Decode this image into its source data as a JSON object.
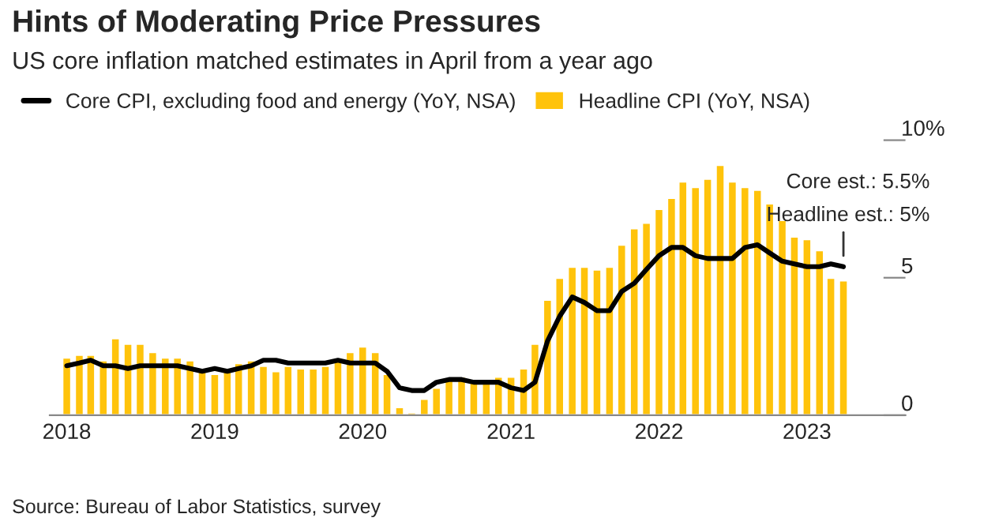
{
  "chart_data": {
    "type": "bar",
    "title": "Hints of Moderating Price Pressures",
    "subtitle": "US core inflation matched estimates in April from a year ago",
    "x": [
      "2018-01",
      "2018-02",
      "2018-03",
      "2018-04",
      "2018-05",
      "2018-06",
      "2018-07",
      "2018-08",
      "2018-09",
      "2018-10",
      "2018-11",
      "2018-12",
      "2019-01",
      "2019-02",
      "2019-03",
      "2019-04",
      "2019-05",
      "2019-06",
      "2019-07",
      "2019-08",
      "2019-09",
      "2019-10",
      "2019-11",
      "2019-12",
      "2020-01",
      "2020-02",
      "2020-03",
      "2020-04",
      "2020-05",
      "2020-06",
      "2020-07",
      "2020-08",
      "2020-09",
      "2020-10",
      "2020-11",
      "2020-12",
      "2021-01",
      "2021-02",
      "2021-03",
      "2021-04",
      "2021-05",
      "2021-06",
      "2021-07",
      "2021-08",
      "2021-09",
      "2021-10",
      "2021-11",
      "2021-12",
      "2022-01",
      "2022-02",
      "2022-03",
      "2022-04",
      "2022-05",
      "2022-06",
      "2022-07",
      "2022-08",
      "2022-09",
      "2022-10",
      "2022-11",
      "2022-12",
      "2023-01",
      "2023-02",
      "2023-03",
      "2023-04"
    ],
    "series": [
      {
        "name": "Headline CPI (YoY, NSA)",
        "color": "#ffc30b",
        "values": [
          2.1,
          2.2,
          2.2,
          2.0,
          2.8,
          2.6,
          2.6,
          2.3,
          2.1,
          2.1,
          2.0,
          1.6,
          1.5,
          1.6,
          1.9,
          2.0,
          1.8,
          1.6,
          1.8,
          1.7,
          1.7,
          1.8,
          2.1,
          2.3,
          2.5,
          2.3,
          1.5,
          0.3,
          0.1,
          0.6,
          1.0,
          1.3,
          1.4,
          1.2,
          1.2,
          1.4,
          1.4,
          1.7,
          2.6,
          4.2,
          5.0,
          5.4,
          5.4,
          5.3,
          5.4,
          6.2,
          6.8,
          7.0,
          7.5,
          7.9,
          8.5,
          8.3,
          8.6,
          9.1,
          8.5,
          8.3,
          8.2,
          7.7,
          7.1,
          6.5,
          6.4,
          6.0,
          5.0,
          4.9
        ]
      },
      {
        "name": "Core CPI, excluding food and energy (YoY, NSA)",
        "type": "line",
        "color": "#000000",
        "values": [
          1.8,
          1.9,
          2.0,
          1.8,
          1.8,
          1.7,
          1.8,
          1.8,
          1.8,
          1.8,
          1.7,
          1.6,
          1.7,
          1.6,
          1.7,
          1.8,
          2.0,
          2.0,
          1.9,
          1.9,
          1.9,
          1.9,
          2.0,
          1.9,
          1.9,
          1.9,
          1.6,
          1.0,
          0.9,
          0.9,
          1.2,
          1.3,
          1.3,
          1.2,
          1.2,
          1.2,
          1.0,
          0.9,
          1.2,
          2.7,
          3.6,
          4.3,
          4.1,
          3.8,
          3.8,
          4.5,
          4.8,
          5.3,
          5.8,
          6.1,
          6.1,
          5.8,
          5.7,
          5.7,
          5.7,
          6.1,
          6.2,
          5.9,
          5.6,
          5.5,
          5.4,
          5.4,
          5.5,
          5.4
        ]
      }
    ],
    "xlim": [
      "2017-11-20",
      "2023-09-01"
    ],
    "xticks": [
      {
        "value": "2018-01-01",
        "label": "2018"
      },
      {
        "value": "2019-01-01",
        "label": "2019"
      },
      {
        "value": "2020-01-01",
        "label": "2020"
      },
      {
        "value": "2021-01-01",
        "label": "2021"
      },
      {
        "value": "2022-01-01",
        "label": "2022"
      },
      {
        "value": "2023-01-01",
        "label": "2023"
      }
    ],
    "ylim": [
      0,
      10
    ],
    "yticks": [
      0,
      5,
      {
        "value": 10,
        "label": "10%"
      }
    ],
    "annotations": [
      "Core est.: 5.5%",
      "Headline est.: 5%",
      "Source: Bureau of Labor Statistics, survey"
    ],
    "legend": "top left",
    "grid": false
  }
}
